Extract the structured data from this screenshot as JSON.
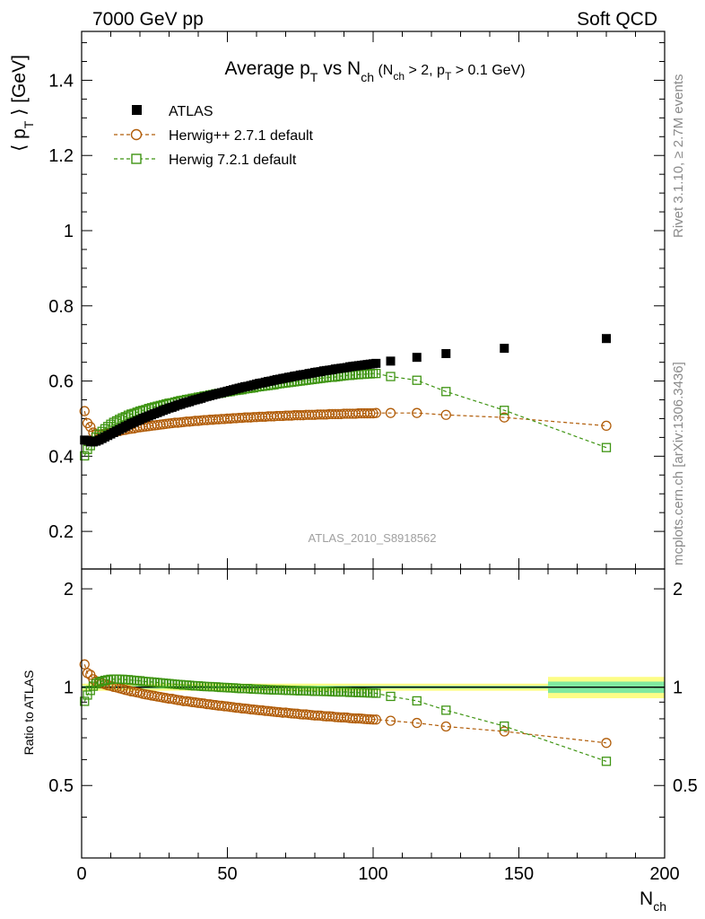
{
  "header": {
    "energy": "7000 GeV pp",
    "category": "Soft QCD"
  },
  "side_labels": {
    "rivet": "Rivet 3.1.10, ≥ 2.7M events",
    "mcplots": "mcplots.cern.ch [arXiv:1306.3436]"
  },
  "analysis_id": "ATLAS_2010_S8918562",
  "chart_data": {
    "type": "scatter",
    "title": {
      "main": "Average p",
      "main_sub": "T",
      "vs": " vs N",
      "vs_sub": "ch",
      "cond1": " (N",
      "cond1_sub": "ch",
      "cond2": " > 2, p",
      "cond2_sub": "T",
      "cond3": " > 0.1 GeV)"
    },
    "xlabel": {
      "main": "N",
      "sub": "ch"
    },
    "ylabel": {
      "main": "⟨ p",
      "sub": "T",
      "tail": " ⟩ [GeV]"
    },
    "ratio_ylabel": "Ratio to ATLAS",
    "xlim": [
      0,
      200
    ],
    "ylim": [
      0.1,
      1.53
    ],
    "ratio_ylim": [
      0.3,
      2.3
    ],
    "x_ticks": [
      "0",
      "50",
      "100",
      "150",
      "200"
    ],
    "y_ticks": [
      "0.2",
      "0.4",
      "0.6",
      "0.8",
      "1",
      "1.2",
      "1.4"
    ],
    "ratio_ticks": [
      "0.5",
      "1",
      "2"
    ],
    "legend_position": "top-left",
    "series": [
      {
        "name": "ATLAS",
        "color": "#000000",
        "marker": "filled-square",
        "x": [
          1,
          2,
          3,
          4,
          5,
          6,
          7,
          8,
          9,
          10,
          11,
          12,
          13,
          14,
          15,
          16,
          17,
          18,
          19,
          20,
          21,
          22,
          23,
          24,
          25,
          26,
          27,
          28,
          29,
          30,
          31,
          32,
          33,
          34,
          35,
          36,
          37,
          38,
          39,
          40,
          41,
          42,
          43,
          44,
          45,
          46,
          47,
          48,
          49,
          50,
          51,
          52,
          53,
          54,
          55,
          56,
          57,
          58,
          59,
          60,
          61,
          62,
          63,
          64,
          65,
          66,
          67,
          68,
          69,
          70,
          71,
          72,
          73,
          74,
          75,
          76,
          77,
          78,
          79,
          80,
          81,
          82,
          83,
          84,
          85,
          86,
          87,
          88,
          89,
          90,
          91,
          92,
          93,
          94,
          95,
          96,
          97,
          98,
          99,
          100,
          101,
          106,
          115,
          125,
          145,
          180
        ],
        "y": [
          0.443,
          0.442,
          0.438,
          0.438,
          0.44,
          0.443,
          0.447,
          0.451,
          0.455,
          0.459,
          0.463,
          0.467,
          0.471,
          0.475,
          0.479,
          0.483,
          0.487,
          0.49,
          0.494,
          0.497,
          0.501,
          0.504,
          0.507,
          0.51,
          0.513,
          0.516,
          0.519,
          0.522,
          0.525,
          0.528,
          0.53,
          0.533,
          0.536,
          0.538,
          0.541,
          0.543,
          0.545,
          0.548,
          0.55,
          0.552,
          0.554,
          0.557,
          0.559,
          0.561,
          0.563,
          0.565,
          0.567,
          0.569,
          0.571,
          0.573,
          0.575,
          0.577,
          0.579,
          0.581,
          0.583,
          0.585,
          0.586,
          0.588,
          0.59,
          0.592,
          0.594,
          0.595,
          0.597,
          0.599,
          0.6,
          0.602,
          0.604,
          0.605,
          0.607,
          0.608,
          0.61,
          0.611,
          0.613,
          0.614,
          0.616,
          0.617,
          0.618,
          0.62,
          0.621,
          0.623,
          0.624,
          0.625,
          0.627,
          0.628,
          0.629,
          0.63,
          0.632,
          0.633,
          0.634,
          0.635,
          0.636,
          0.638,
          0.639,
          0.64,
          0.641,
          0.642,
          0.643,
          0.644,
          0.645,
          0.646,
          0.647,
          0.653,
          0.663,
          0.673,
          0.687,
          0.713
        ]
      },
      {
        "name": "Herwig++ 2.7.1 default",
        "color": "#b15d09",
        "marker": "open-circle",
        "x": [
          1,
          2,
          3,
          4,
          5,
          6,
          7,
          8,
          9,
          10,
          11,
          12,
          13,
          14,
          15,
          16,
          17,
          18,
          19,
          20,
          21,
          22,
          23,
          24,
          25,
          26,
          27,
          28,
          29,
          30,
          31,
          32,
          33,
          34,
          35,
          36,
          37,
          38,
          39,
          40,
          41,
          42,
          43,
          44,
          45,
          46,
          47,
          48,
          49,
          50,
          51,
          52,
          53,
          54,
          55,
          56,
          57,
          58,
          59,
          60,
          61,
          62,
          63,
          64,
          65,
          66,
          67,
          68,
          69,
          70,
          71,
          72,
          73,
          74,
          75,
          76,
          77,
          78,
          79,
          80,
          81,
          82,
          83,
          84,
          85,
          86,
          87,
          88,
          89,
          90,
          91,
          92,
          93,
          94,
          95,
          96,
          97,
          98,
          99,
          100,
          101,
          106,
          115,
          125,
          145,
          180
        ],
        "y": [
          0.52,
          0.488,
          0.478,
          0.463,
          0.458,
          0.458,
          0.459,
          0.46,
          0.461,
          0.463,
          0.464,
          0.466,
          0.467,
          0.469,
          0.47,
          0.472,
          0.473,
          0.474,
          0.476,
          0.477,
          0.478,
          0.479,
          0.48,
          0.481,
          0.482,
          0.483,
          0.484,
          0.485,
          0.486,
          0.487,
          0.488,
          0.489,
          0.489,
          0.49,
          0.491,
          0.492,
          0.492,
          0.493,
          0.494,
          0.494,
          0.495,
          0.496,
          0.496,
          0.497,
          0.497,
          0.498,
          0.498,
          0.499,
          0.499,
          0.5,
          0.5,
          0.501,
          0.501,
          0.502,
          0.502,
          0.503,
          0.503,
          0.503,
          0.504,
          0.504,
          0.505,
          0.505,
          0.505,
          0.506,
          0.506,
          0.506,
          0.507,
          0.507,
          0.507,
          0.508,
          0.508,
          0.508,
          0.509,
          0.509,
          0.509,
          0.509,
          0.51,
          0.51,
          0.51,
          0.51,
          0.511,
          0.511,
          0.511,
          0.511,
          0.512,
          0.512,
          0.512,
          0.512,
          0.512,
          0.513,
          0.513,
          0.513,
          0.513,
          0.513,
          0.514,
          0.514,
          0.514,
          0.514,
          0.514,
          0.514,
          0.515,
          0.515,
          0.515,
          0.51,
          0.503,
          0.481
        ]
      },
      {
        "name": "Herwig 7.2.1 default",
        "color": "#3e9412",
        "marker": "open-square",
        "x": [
          1,
          2,
          3,
          4,
          5,
          6,
          7,
          8,
          9,
          10,
          11,
          12,
          13,
          14,
          15,
          16,
          17,
          18,
          19,
          20,
          21,
          22,
          23,
          24,
          25,
          26,
          27,
          28,
          29,
          30,
          31,
          32,
          33,
          34,
          35,
          36,
          37,
          38,
          39,
          40,
          41,
          42,
          43,
          44,
          45,
          46,
          47,
          48,
          49,
          50,
          51,
          52,
          53,
          54,
          55,
          56,
          57,
          58,
          59,
          60,
          61,
          62,
          63,
          64,
          65,
          66,
          67,
          68,
          69,
          70,
          71,
          72,
          73,
          74,
          75,
          76,
          77,
          78,
          79,
          80,
          81,
          82,
          83,
          84,
          85,
          86,
          87,
          88,
          89,
          90,
          91,
          92,
          93,
          94,
          95,
          96,
          97,
          98,
          99,
          100,
          101,
          106,
          115,
          125,
          145,
          180
        ],
        "y": [
          0.401,
          0.418,
          0.428,
          0.441,
          0.451,
          0.459,
          0.466,
          0.473,
          0.479,
          0.485,
          0.49,
          0.494,
          0.498,
          0.502,
          0.505,
          0.509,
          0.512,
          0.514,
          0.517,
          0.52,
          0.522,
          0.524,
          0.527,
          0.529,
          0.531,
          0.533,
          0.535,
          0.537,
          0.539,
          0.541,
          0.542,
          0.544,
          0.546,
          0.548,
          0.549,
          0.551,
          0.552,
          0.554,
          0.555,
          0.557,
          0.558,
          0.56,
          0.561,
          0.563,
          0.564,
          0.566,
          0.567,
          0.568,
          0.57,
          0.571,
          0.572,
          0.574,
          0.575,
          0.576,
          0.577,
          0.579,
          0.58,
          0.581,
          0.582,
          0.584,
          0.585,
          0.586,
          0.587,
          0.588,
          0.589,
          0.59,
          0.592,
          0.593,
          0.594,
          0.595,
          0.596,
          0.597,
          0.598,
          0.599,
          0.6,
          0.601,
          0.602,
          0.603,
          0.604,
          0.605,
          0.606,
          0.607,
          0.608,
          0.609,
          0.61,
          0.61,
          0.611,
          0.612,
          0.613,
          0.614,
          0.615,
          0.615,
          0.616,
          0.617,
          0.617,
          0.618,
          0.618,
          0.619,
          0.619,
          0.62,
          0.62,
          0.612,
          0.602,
          0.572,
          0.522,
          0.423
        ]
      }
    ],
    "ratio_series": [
      {
        "name": "Herwig++ 2.7.1 default",
        "x": [
          1,
          2,
          3,
          4,
          5,
          6,
          7,
          8,
          9,
          10,
          11,
          12,
          13,
          14,
          15,
          16,
          17,
          18,
          19,
          20,
          21,
          22,
          23,
          24,
          25,
          26,
          27,
          28,
          29,
          30,
          31,
          32,
          33,
          34,
          35,
          36,
          37,
          38,
          39,
          40,
          41,
          42,
          43,
          44,
          45,
          46,
          47,
          48,
          49,
          50,
          51,
          52,
          53,
          54,
          55,
          56,
          57,
          58,
          59,
          60,
          61,
          62,
          63,
          64,
          65,
          66,
          67,
          68,
          69,
          70,
          71,
          72,
          73,
          74,
          75,
          76,
          77,
          78,
          79,
          80,
          81,
          82,
          83,
          84,
          85,
          86,
          87,
          88,
          89,
          90,
          91,
          92,
          93,
          94,
          95,
          96,
          97,
          98,
          99,
          100,
          101,
          106,
          115,
          125,
          145,
          180
        ],
        "y": [
          1.174,
          1.104,
          1.091,
          1.057,
          1.041,
          1.034,
          1.027,
          1.02,
          1.013,
          1.009,
          1.002,
          0.998,
          0.992,
          0.987,
          0.981,
          0.977,
          0.971,
          0.968,
          0.964,
          0.96,
          0.954,
          0.95,
          0.947,
          0.943,
          0.94,
          0.936,
          0.933,
          0.929,
          0.926,
          0.922,
          0.921,
          0.917,
          0.913,
          0.911,
          0.906,
          0.906,
          0.903,
          0.9,
          0.898,
          0.895,
          0.893,
          0.891,
          0.887,
          0.886,
          0.883,
          0.881,
          0.878,
          0.877,
          0.874,
          0.873,
          0.87,
          0.868,
          0.865,
          0.864,
          0.861,
          0.86,
          0.858,
          0.855,
          0.854,
          0.852,
          0.85,
          0.849,
          0.846,
          0.845,
          0.843,
          0.841,
          0.839,
          0.838,
          0.835,
          0.836,
          0.833,
          0.831,
          0.83,
          0.829,
          0.826,
          0.825,
          0.825,
          0.823,
          0.821,
          0.819,
          0.819,
          0.818,
          0.815,
          0.814,
          0.814,
          0.813,
          0.81,
          0.809,
          0.808,
          0.808,
          0.807,
          0.804,
          0.803,
          0.802,
          0.802,
          0.801,
          0.799,
          0.798,
          0.797,
          0.796,
          0.796,
          0.789,
          0.777,
          0.758,
          0.732,
          0.675
        ]
      },
      {
        "name": "Herwig 7.2.1 default",
        "x": [
          1,
          2,
          3,
          4,
          5,
          6,
          7,
          8,
          9,
          10,
          11,
          12,
          13,
          14,
          15,
          16,
          17,
          18,
          19,
          20,
          21,
          22,
          23,
          24,
          25,
          26,
          27,
          28,
          29,
          30,
          31,
          32,
          33,
          34,
          35,
          36,
          37,
          38,
          39,
          40,
          41,
          42,
          43,
          44,
          45,
          46,
          47,
          48,
          49,
          50,
          51,
          52,
          53,
          54,
          55,
          56,
          57,
          58,
          59,
          60,
          61,
          62,
          63,
          64,
          65,
          66,
          67,
          68,
          69,
          70,
          71,
          72,
          73,
          74,
          75,
          76,
          77,
          78,
          79,
          80,
          81,
          82,
          83,
          84,
          85,
          86,
          87,
          88,
          89,
          90,
          91,
          92,
          93,
          94,
          95,
          96,
          97,
          98,
          99,
          100,
          101,
          106,
          115,
          125,
          145,
          180
        ],
        "y": [
          0.905,
          0.946,
          0.977,
          1.007,
          1.025,
          1.036,
          1.043,
          1.049,
          1.053,
          1.057,
          1.058,
          1.058,
          1.057,
          1.057,
          1.054,
          1.054,
          1.051,
          1.049,
          1.047,
          1.046,
          1.042,
          1.04,
          1.039,
          1.037,
          1.035,
          1.033,
          1.031,
          1.029,
          1.027,
          1.025,
          1.023,
          1.021,
          1.019,
          1.018,
          1.015,
          1.015,
          1.013,
          1.011,
          1.009,
          1.009,
          1.007,
          1.005,
          1.004,
          1.004,
          1.002,
          1.002,
          1.0,
          0.998,
          0.998,
          0.997,
          0.995,
          0.995,
          0.993,
          0.991,
          0.99,
          0.99,
          0.99,
          0.988,
          0.986,
          0.986,
          0.985,
          0.985,
          0.983,
          0.982,
          0.982,
          0.98,
          0.98,
          0.98,
          0.979,
          0.979,
          0.977,
          0.977,
          0.976,
          0.976,
          0.974,
          0.974,
          0.974,
          0.973,
          0.973,
          0.971,
          0.971,
          0.971,
          0.97,
          0.97,
          0.97,
          0.968,
          0.967,
          0.967,
          0.967,
          0.967,
          0.967,
          0.964,
          0.964,
          0.964,
          0.962,
          0.963,
          0.961,
          0.961,
          0.96,
          0.96,
          0.958,
          0.937,
          0.908,
          0.85,
          0.76,
          0.593
        ]
      }
    ],
    "ratio_band": {
      "inner_color": "#80e9a0",
      "outer_color": "#fdfd86",
      "segments": [
        {
          "x0": 0,
          "x1": 160,
          "inner": 0.01,
          "outer": 0.025
        },
        {
          "x0": 160,
          "x1": 200,
          "inner": 0.04,
          "outer": 0.075
        }
      ]
    }
  }
}
